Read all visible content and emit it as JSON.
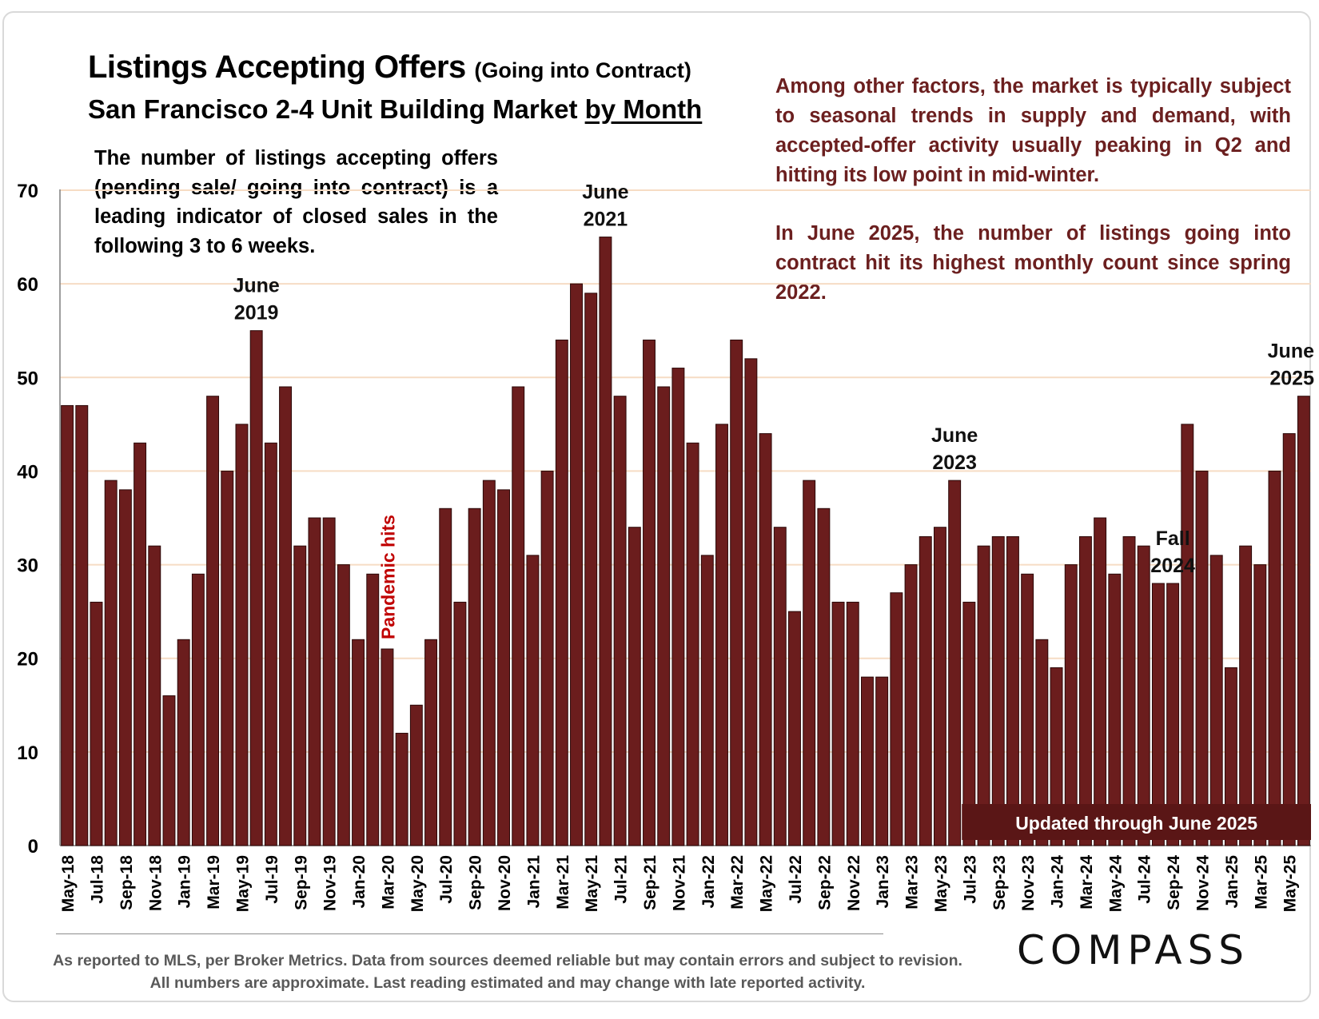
{
  "title": {
    "main": "Listings Accepting Offers",
    "sub": "(Going into Contract)"
  },
  "subtitle": {
    "lead": "San Francisco 2-4 Unit Building Market ",
    "emph": "by Month"
  },
  "note_left": "The number of listings accepting offers (pending sale/ going into contract) is a leading indicator of closed sales in the following 3 to 6 weeks.",
  "note_right_1": "Among other factors, the market is typically subject to seasonal trends in supply and demand, with accepted-offer activity usually peaking in Q2 and hitting its low point in mid-winter.",
  "note_right_2": "In June 2025, the number of listings going into contract hit its highest monthly count since spring 2022.",
  "footnote": "As reported to MLS, per Broker Metrics. Data from sources deemed reliable but may contain errors and subject to revision. All numbers are approximate.  Last reading estimated and may change with late reported activity.",
  "logo_text": "COMPASS",
  "colors": {
    "bar": "#6b1d1d",
    "bar_edge": "#2b0808",
    "grid": "#f6dcc4",
    "annotation_red": "#c00000",
    "note_text": "#6b1f1f"
  },
  "chart_data": {
    "type": "bar",
    "title": "Listings Accepting Offers (Going into Contract)",
    "subtitle": "San Francisco 2-4 Unit Building Market by Month",
    "xlabel": "",
    "ylabel": "",
    "ylim": [
      0,
      70
    ],
    "yticks": [
      0,
      10,
      20,
      30,
      40,
      50,
      60,
      70
    ],
    "grid": true,
    "categories": [
      "May-18",
      "Jun-18",
      "Jul-18",
      "Aug-18",
      "Sep-18",
      "Oct-18",
      "Nov-18",
      "Dec-18",
      "Jan-19",
      "Feb-19",
      "Mar-19",
      "Apr-19",
      "May-19",
      "Jun-19",
      "Jul-19",
      "Aug-19",
      "Sep-19",
      "Oct-19",
      "Nov-19",
      "Dec-19",
      "Jan-20",
      "Feb-20",
      "Mar-20",
      "Apr-20",
      "May-20",
      "Jun-20",
      "Jul-20",
      "Aug-20",
      "Sep-20",
      "Oct-20",
      "Nov-20",
      "Dec-20",
      "Jan-21",
      "Feb-21",
      "Mar-21",
      "Apr-21",
      "May-21",
      "Jun-21",
      "Jul-21",
      "Aug-21",
      "Sep-21",
      "Oct-21",
      "Nov-21",
      "Dec-21",
      "Jan-22",
      "Feb-22",
      "Mar-22",
      "Apr-22",
      "May-22",
      "Jun-22",
      "Jul-22",
      "Aug-22",
      "Sep-22",
      "Oct-22",
      "Nov-22",
      "Dec-22",
      "Jan-23",
      "Feb-23",
      "Mar-23",
      "Apr-23",
      "May-23",
      "Jun-23",
      "Jul-23",
      "Aug-23",
      "Sep-23",
      "Oct-23",
      "Nov-23",
      "Dec-23",
      "Jan-24",
      "Feb-24",
      "Mar-24",
      "Apr-24",
      "May-24",
      "Jun-24",
      "Jul-24",
      "Aug-24",
      "Sep-24",
      "Oct-24",
      "Nov-24",
      "Dec-24",
      "Jan-25",
      "Feb-25",
      "Mar-25",
      "Apr-25",
      "May-25",
      "Jun-25"
    ],
    "tick_labels": [
      "May-18",
      "Jul-18",
      "Sep-18",
      "Nov-18",
      "Jan-19",
      "Mar-19",
      "May-19",
      "Jul-19",
      "Sep-19",
      "Nov-19",
      "Jan-20",
      "Mar-20",
      "May-20",
      "Jul-20",
      "Sep-20",
      "Nov-20",
      "Jan-21",
      "Mar-21",
      "May-21",
      "Jul-21",
      "Sep-21",
      "Nov-21",
      "Jan-22",
      "Mar-22",
      "May-22",
      "Jul-22",
      "Sep-22",
      "Nov-22",
      "Jan-23",
      "Mar-23",
      "May-23",
      "Jul-23",
      "Sep-23",
      "Nov-23",
      "Jan-24",
      "Mar-24",
      "May-24",
      "Jul-24",
      "Sep-24",
      "Nov-24",
      "Jan-25",
      "Mar-25",
      "May-25"
    ],
    "values": [
      47,
      47,
      26,
      39,
      38,
      43,
      32,
      16,
      22,
      29,
      48,
      40,
      45,
      55,
      43,
      49,
      32,
      35,
      35,
      30,
      22,
      29,
      21,
      12,
      15,
      22,
      36,
      26,
      36,
      39,
      38,
      49,
      31,
      40,
      54,
      60,
      59,
      65,
      48,
      34,
      54,
      49,
      51,
      43,
      31,
      45,
      54,
      52,
      44,
      34,
      25,
      39,
      36,
      26,
      26,
      18,
      18,
      27,
      30,
      33,
      34,
      39,
      26,
      32,
      33,
      33,
      29,
      22,
      19,
      30,
      33,
      35,
      29,
      33,
      32,
      28,
      28,
      45,
      40,
      31,
      19,
      32,
      30,
      40,
      44,
      48
    ],
    "annotations": [
      {
        "text": "June 2019",
        "category": "Jun-19"
      },
      {
        "text": "June 2021",
        "category": "Jun-21"
      },
      {
        "text": "June 2023",
        "category": "Jun-23"
      },
      {
        "text": "Fall 2024",
        "category": "Sep-24"
      },
      {
        "text": "June 2025",
        "category": "Jun-25"
      },
      {
        "text": "Pandemic hits",
        "category": "Mar-20"
      }
    ],
    "banner": "Updated through June 2025"
  }
}
